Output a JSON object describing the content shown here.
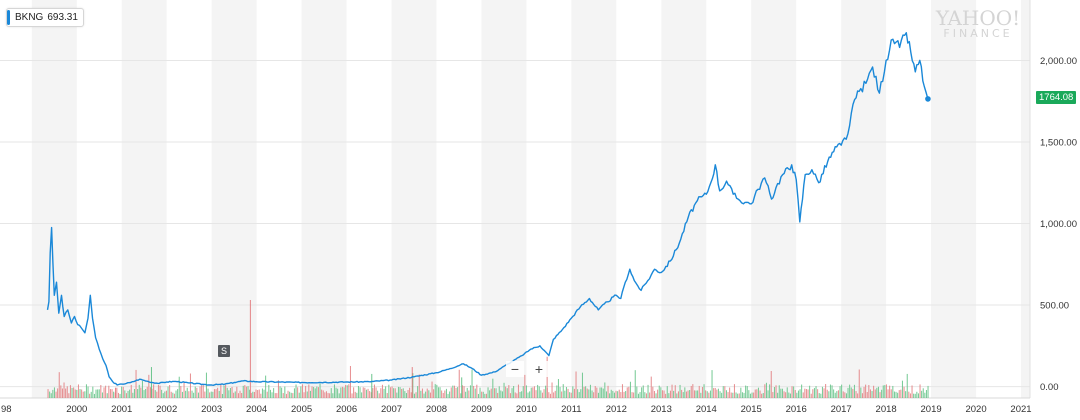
{
  "legend": {
    "symbol": "BKNG",
    "value": "693.31",
    "color": "#1a88d8"
  },
  "watermark": {
    "line1": "YAHOO!",
    "line2": "FINANCE"
  },
  "last_price_badge": "1764.08",
  "split_marker": "S",
  "zoom": {
    "out": "−",
    "in": "+"
  },
  "colors": {
    "line": "#1a88d8",
    "volume_up": "#5bbf80",
    "volume_down": "#e2787a",
    "badge": "#1aa95a",
    "band": "#f4f4f4"
  },
  "chart_data": {
    "type": "line",
    "title": "",
    "xlabel": "",
    "ylabel": "",
    "x_tick_labels": [
      "98",
      "2000",
      "2001",
      "2002",
      "2003",
      "2004",
      "2005",
      "2006",
      "2007",
      "2008",
      "2009",
      "2010",
      "2011",
      "2012",
      "2013",
      "2014",
      "2015",
      "2016",
      "2017",
      "2018",
      "2019",
      "2020",
      "2021"
    ],
    "x_tick_years": [
      1999.0,
      2000,
      2001,
      2002,
      2003,
      2004,
      2005,
      2006,
      2007,
      2008,
      2009,
      2010,
      2011,
      2012,
      2013,
      2014,
      2015,
      2016,
      2017,
      2018,
      2019,
      2020,
      2021
    ],
    "y_tick_labels": [
      "0.00",
      "500.00",
      "1,000.00",
      "1,500.00",
      "2,000.00"
    ],
    "y_ticks": [
      0,
      500,
      1000,
      1500,
      2000
    ],
    "xlim": [
      1998.96,
      2021.2
    ],
    "ylim": [
      -70,
      2340
    ],
    "grid": true,
    "legend_position": "top-left",
    "series": [
      {
        "name": "BKNG",
        "points": [
          [
            1999.35,
            470
          ],
          [
            1999.38,
            520
          ],
          [
            1999.41,
            820
          ],
          [
            1999.44,
            975
          ],
          [
            1999.47,
            760
          ],
          [
            1999.5,
            560
          ],
          [
            1999.55,
            640
          ],
          [
            1999.6,
            450
          ],
          [
            1999.66,
            560
          ],
          [
            1999.72,
            430
          ],
          [
            1999.8,
            470
          ],
          [
            1999.88,
            390
          ],
          [
            1999.95,
            430
          ],
          [
            2000.02,
            380
          ],
          [
            2000.1,
            360
          ],
          [
            2000.18,
            330
          ],
          [
            2000.25,
            420
          ],
          [
            2000.3,
            560
          ],
          [
            2000.35,
            420
          ],
          [
            2000.42,
            300
          ],
          [
            2000.5,
            230
          ],
          [
            2000.58,
            170
          ],
          [
            2000.65,
            130
          ],
          [
            2000.72,
            60
          ],
          [
            2000.8,
            30
          ],
          [
            2000.9,
            10
          ],
          [
            2001.0,
            15
          ],
          [
            2001.2,
            25
          ],
          [
            2001.4,
            45
          ],
          [
            2001.6,
            30
          ],
          [
            2001.8,
            20
          ],
          [
            2002.0,
            28
          ],
          [
            2002.2,
            32
          ],
          [
            2002.5,
            22
          ],
          [
            2002.8,
            14
          ],
          [
            2003.0,
            10
          ],
          [
            2003.3,
            15
          ],
          [
            2003.5,
            25
          ],
          [
            2003.7,
            35
          ],
          [
            2004.0,
            30
          ],
          [
            2004.5,
            28
          ],
          [
            2005.0,
            25
          ],
          [
            2005.5,
            26
          ],
          [
            2006.0,
            28
          ],
          [
            2006.5,
            30
          ],
          [
            2007.0,
            40
          ],
          [
            2007.5,
            60
          ],
          [
            2008.0,
            85
          ],
          [
            2008.3,
            110
          ],
          [
            2008.6,
            140
          ],
          [
            2008.8,
            110
          ],
          [
            2009.0,
            70
          ],
          [
            2009.3,
            90
          ],
          [
            2009.6,
            140
          ],
          [
            2009.9,
            190
          ],
          [
            2010.1,
            230
          ],
          [
            2010.3,
            250
          ],
          [
            2010.5,
            190
          ],
          [
            2010.6,
            290
          ],
          [
            2010.8,
            350
          ],
          [
            2011.0,
            420
          ],
          [
            2011.2,
            490
          ],
          [
            2011.4,
            540
          ],
          [
            2011.6,
            470
          ],
          [
            2011.8,
            520
          ],
          [
            2012.0,
            560
          ],
          [
            2012.1,
            540
          ],
          [
            2012.2,
            640
          ],
          [
            2012.3,
            720
          ],
          [
            2012.4,
            650
          ],
          [
            2012.55,
            590
          ],
          [
            2012.7,
            650
          ],
          [
            2012.85,
            720
          ],
          [
            2013.0,
            700
          ],
          [
            2013.2,
            770
          ],
          [
            2013.4,
            880
          ],
          [
            2013.6,
            1040
          ],
          [
            2013.8,
            1140
          ],
          [
            2014.0,
            1180
          ],
          [
            2014.1,
            1250
          ],
          [
            2014.2,
            1360
          ],
          [
            2014.3,
            1200
          ],
          [
            2014.45,
            1260
          ],
          [
            2014.6,
            1180
          ],
          [
            2014.75,
            1140
          ],
          [
            2014.9,
            1130
          ],
          [
            2015.0,
            1120
          ],
          [
            2015.15,
            1210
          ],
          [
            2015.3,
            1280
          ],
          [
            2015.45,
            1150
          ],
          [
            2015.55,
            1220
          ],
          [
            2015.7,
            1300
          ],
          [
            2015.9,
            1360
          ],
          [
            2016.0,
            1270
          ],
          [
            2016.08,
            1010
          ],
          [
            2016.2,
            1300
          ],
          [
            2016.35,
            1330
          ],
          [
            2016.5,
            1250
          ],
          [
            2016.7,
            1380
          ],
          [
            2016.9,
            1470
          ],
          [
            2017.0,
            1480
          ],
          [
            2017.15,
            1550
          ],
          [
            2017.3,
            1760
          ],
          [
            2017.4,
            1810
          ],
          [
            2017.55,
            1860
          ],
          [
            2017.7,
            1960
          ],
          [
            2017.85,
            1800
          ],
          [
            2018.0,
            2000
          ],
          [
            2018.15,
            2130
          ],
          [
            2018.3,
            2080
          ],
          [
            2018.45,
            2170
          ],
          [
            2018.55,
            2050
          ],
          [
            2018.65,
            1930
          ],
          [
            2018.75,
            2000
          ],
          [
            2018.85,
            1840
          ],
          [
            2018.93,
            1764.08
          ]
        ]
      }
    ],
    "volume_bars": [
      {
        "x": 2000.85,
        "value": 6
      },
      {
        "x": 2001.65,
        "value": 18
      },
      {
        "x": 2003.85,
        "value": 57
      },
      {
        "x": 2006.55,
        "value": 14
      },
      {
        "x": 2007.45,
        "value": 18
      },
      {
        "x": 2008.55,
        "value": 12
      },
      {
        "x": 2010.45,
        "value": 24
      }
    ]
  }
}
